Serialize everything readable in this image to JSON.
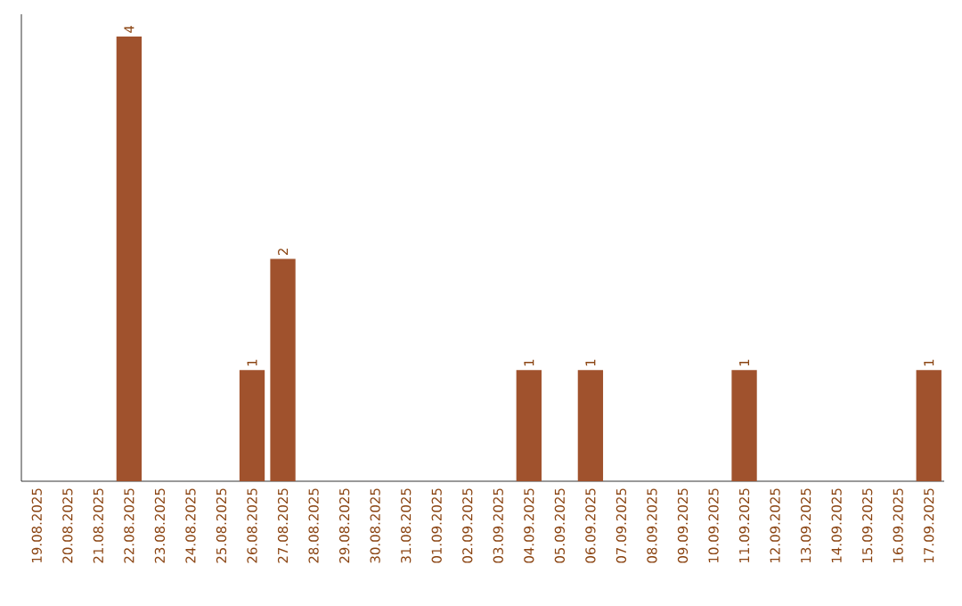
{
  "chart_data": {
    "type": "bar",
    "categories": [
      "19.08.2025",
      "20.08.2025",
      "21.08.2025",
      "22.08.2025",
      "23.08.2025",
      "24.08.2025",
      "25.08.2025",
      "26.08.2025",
      "27.08.2025",
      "28.08.2025",
      "29.08.2025",
      "30.08.2025",
      "31.08.2025",
      "01.09.2025",
      "02.09.2025",
      "03.09.2025",
      "04.09.2025",
      "05.09.2025",
      "06.09.2025",
      "07.09.2025",
      "08.09.2025",
      "09.09.2025",
      "10.09.2025",
      "11.09.2025",
      "12.09.2025",
      "13.09.2025",
      "14.09.2025",
      "15.09.2025",
      "16.09.2025",
      "17.09.2025"
    ],
    "values": [
      0,
      0,
      0,
      4,
      0,
      0,
      0,
      1,
      2,
      0,
      0,
      0,
      0,
      0,
      0,
      0,
      1,
      0,
      1,
      0,
      0,
      0,
      0,
      1,
      0,
      0,
      0,
      0,
      0,
      1
    ],
    "value_labels": [
      null,
      null,
      null,
      "4",
      null,
      null,
      null,
      "1",
      "2",
      null,
      null,
      null,
      null,
      null,
      null,
      null,
      "1",
      null,
      "1",
      null,
      null,
      null,
      null,
      "1",
      null,
      null,
      null,
      null,
      null,
      "1"
    ],
    "color": "#a0522d"
  }
}
